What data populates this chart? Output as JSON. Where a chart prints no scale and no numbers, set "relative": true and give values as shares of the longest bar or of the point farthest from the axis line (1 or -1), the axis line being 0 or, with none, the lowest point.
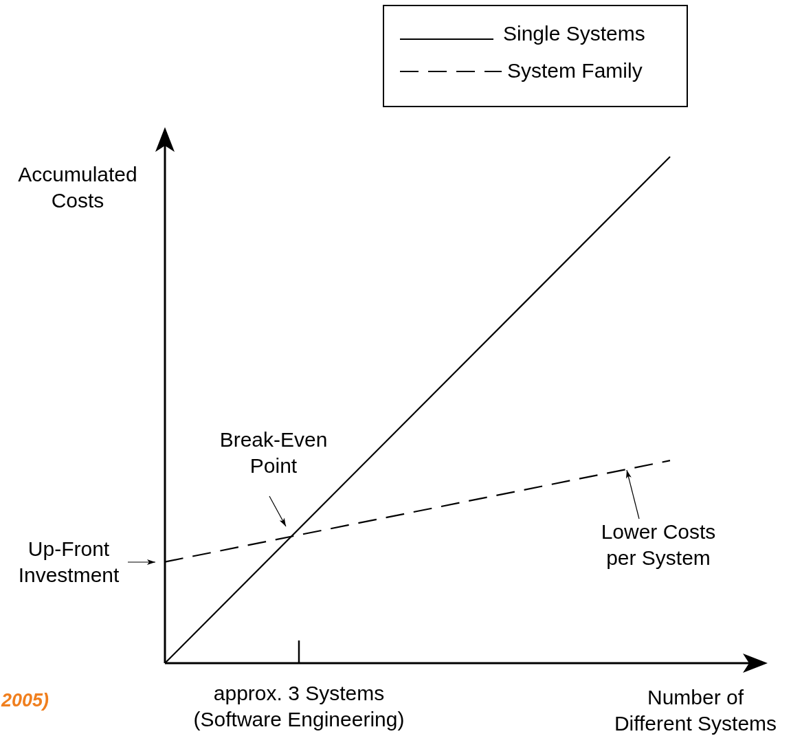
{
  "chart_data": {
    "type": "line",
    "relative": true,
    "xlabel": "Number of Different Systems",
    "ylabel": "Accumulated Costs",
    "categories": [
      null,
      null
    ],
    "legend": "top right",
    "series": [
      {
        "name": "Single Systems",
        "color": "#000000",
        "line_style": "solid",
        "values": [
          0,
          1
        ]
      },
      {
        "name": "System Family",
        "color": "#000000",
        "line_style": "dashed",
        "values": [
          0.2,
          0.4
        ]
      }
    ],
    "annotations": [
      "Break-Even Point",
      "Up-Front Investment",
      "Lower Costs per System",
      "approx. 3 Systems (Software Engineering)",
      "2005)"
    ]
  }
}
